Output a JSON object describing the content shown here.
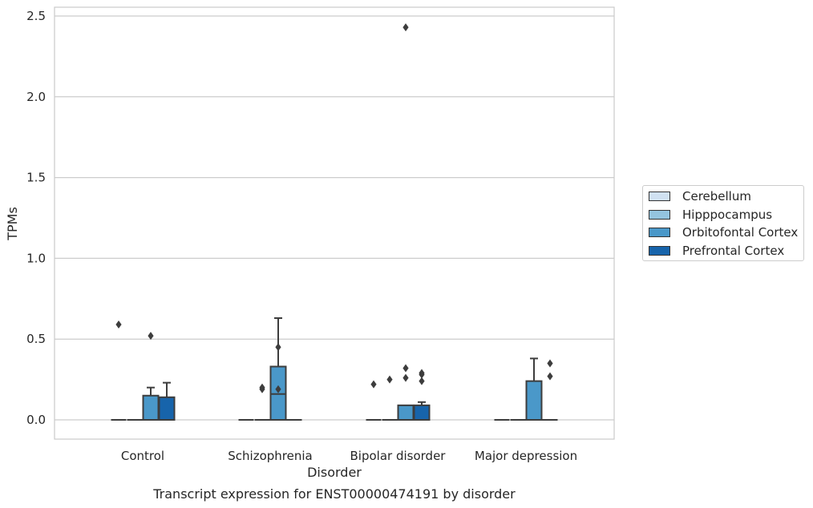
{
  "chart_data": {
    "type": "box",
    "title": "Transcript expression for ENST00000474191 by disorder",
    "xlabel": "Disorder",
    "ylabel": "TPMs",
    "ylim": [
      -0.12,
      2.56
    ],
    "yticks": [
      "0.0",
      "0.5",
      "1.0",
      "1.5",
      "2.0",
      "2.5"
    ],
    "ytick_values": [
      0,
      0.5,
      1.0,
      1.5,
      2.0,
      2.5
    ],
    "categories": [
      "Control",
      "Schizophrenia",
      "Bipolar disorder",
      "Major depression"
    ],
    "grid": true,
    "legend_position": "right",
    "series": [
      {
        "name": "Cerebellum",
        "color": "#d0e1f2",
        "boxes": [
          {
            "q1": 0,
            "median": 0,
            "q3": 0,
            "whisker_low": 0,
            "whisker_high": 0,
            "outliers": [
              0.59
            ]
          },
          {
            "q1": 0,
            "median": 0,
            "q3": 0,
            "whisker_low": 0,
            "whisker_high": 0,
            "outliers": []
          },
          {
            "q1": 0,
            "median": 0,
            "q3": 0,
            "whisker_low": 0,
            "whisker_high": 0,
            "outliers": [
              0.22
            ]
          },
          {
            "q1": 0,
            "median": 0,
            "q3": 0,
            "whisker_low": 0,
            "whisker_high": 0,
            "outliers": []
          }
        ]
      },
      {
        "name": "Hipppocampus",
        "color": "#94c4df",
        "boxes": [
          {
            "q1": 0,
            "median": 0,
            "q3": 0,
            "whisker_low": 0,
            "whisker_high": 0,
            "outliers": []
          },
          {
            "q1": 0,
            "median": 0,
            "q3": 0,
            "whisker_low": 0,
            "whisker_high": 0,
            "outliers": [
              0.19,
              0.2
            ]
          },
          {
            "q1": 0,
            "median": 0,
            "q3": 0,
            "whisker_low": 0,
            "whisker_high": 0,
            "outliers": [
              0.25
            ]
          },
          {
            "q1": 0,
            "median": 0,
            "q3": 0,
            "whisker_low": 0,
            "whisker_high": 0,
            "outliers": []
          }
        ]
      },
      {
        "name": "Orbitofontal Cortex",
        "color": "#4a98c9",
        "boxes": [
          {
            "q1": 0,
            "median": 0,
            "q3": 0.15,
            "whisker_low": 0,
            "whisker_high": 0.2,
            "outliers": [
              0.52
            ]
          },
          {
            "q1": 0,
            "median": 0.16,
            "q3": 0.33,
            "whisker_low": 0,
            "whisker_high": 0.63,
            "outliers": [
              0.19,
              0.45
            ]
          },
          {
            "q1": 0,
            "median": 0,
            "q3": 0.09,
            "whisker_low": 0,
            "whisker_high": 0.09,
            "outliers": [
              0.26,
              0.32,
              2.43
            ]
          },
          {
            "q1": 0,
            "median": 0,
            "q3": 0.24,
            "whisker_low": 0,
            "whisker_high": 0.38,
            "outliers": []
          }
        ]
      },
      {
        "name": "Prefrontal Cortex",
        "color": "#1764ab",
        "boxes": [
          {
            "q1": 0,
            "median": 0,
            "q3": 0.14,
            "whisker_low": 0,
            "whisker_high": 0.23,
            "outliers": []
          },
          {
            "q1": 0,
            "median": 0,
            "q3": 0,
            "whisker_low": 0,
            "whisker_high": 0,
            "outliers": []
          },
          {
            "q1": 0,
            "median": 0,
            "q3": 0.09,
            "whisker_low": 0,
            "whisker_high": 0.11,
            "outliers": [
              0.24,
              0.28,
              0.29
            ]
          },
          {
            "q1": 0,
            "median": 0,
            "q3": 0,
            "whisker_low": 0,
            "whisker_high": 0,
            "outliers": [
              0.27,
              0.35
            ]
          }
        ]
      }
    ]
  }
}
